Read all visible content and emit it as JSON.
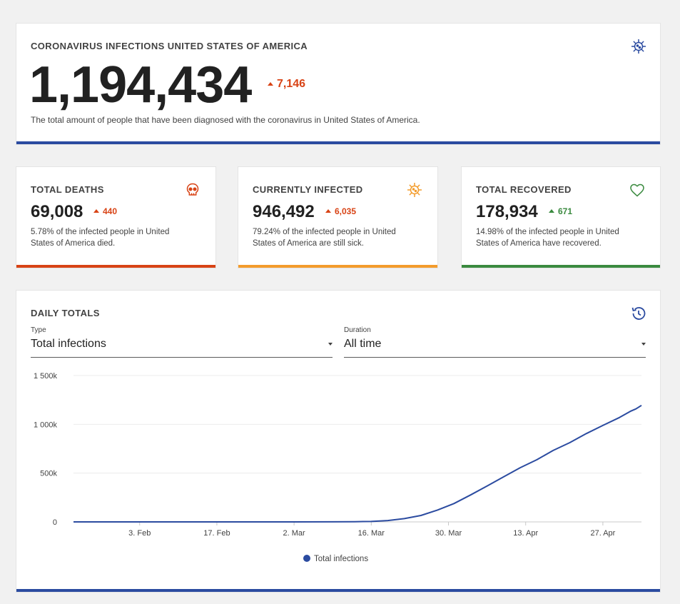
{
  "main": {
    "title": "CORONAVIRUS INFECTIONS UNITED STATES OF AMERICA",
    "total": "1,194,434",
    "delta": "7,146",
    "description": "The total amount of people that have been diagnosed with the coronavirus in United States of America.",
    "icon": "virus-icon",
    "accent": "#2b4ba0"
  },
  "stats": [
    {
      "title": "TOTAL DEATHS",
      "value": "69,008",
      "delta": "440",
      "description": "5.78% of the infected people in United States of America died.",
      "icon": "skull-icon",
      "accent": "#d84315"
    },
    {
      "title": "CURRENTLY INFECTED",
      "value": "946,492",
      "delta": "6,035",
      "description": "79.24% of the infected people in United States of America are still sick.",
      "icon": "virus-icon",
      "accent": "#f39c2c"
    },
    {
      "title": "TOTAL RECOVERED",
      "value": "178,934",
      "delta": "671",
      "description": "14.98% of the infected people in United States of America have recovered.",
      "icon": "heart-icon",
      "accent": "#3a8a3f"
    }
  ],
  "daily": {
    "title": "DAILY TOTALS",
    "icon": "history-icon",
    "type_label": "Type",
    "type_value": "Total infections",
    "duration_label": "Duration",
    "duration_value": "All time"
  },
  "chart_data": {
    "type": "line",
    "title": "DAILY TOTALS",
    "xlabel": "",
    "ylabel": "",
    "x_ticks": [
      "3. Feb",
      "17. Feb",
      "2. Mar",
      "16. Mar",
      "30. Mar",
      "13. Apr",
      "27. Apr"
    ],
    "y_ticks": [
      "0",
      "500k",
      "1 000k",
      "1 500k"
    ],
    "ylim": [
      0,
      1500000
    ],
    "xlim": [
      "2020-01-22",
      "2020-05-04"
    ],
    "grid": true,
    "legend": "bottom-center",
    "series": [
      {
        "name": "Total infections",
        "color": "#2b4ba0",
        "points": [
          [
            "2020-01-22",
            1
          ],
          [
            "2020-02-03",
            11
          ],
          [
            "2020-02-17",
            15
          ],
          [
            "2020-03-02",
            100
          ],
          [
            "2020-03-09",
            600
          ],
          [
            "2020-03-13",
            2200
          ],
          [
            "2020-03-16",
            4600
          ],
          [
            "2020-03-19",
            13700
          ],
          [
            "2020-03-22",
            33300
          ],
          [
            "2020-03-25",
            65800
          ],
          [
            "2020-03-28",
            121500
          ],
          [
            "2020-03-31",
            188200
          ],
          [
            "2020-04-03",
            275600
          ],
          [
            "2020-04-06",
            367000
          ],
          [
            "2020-04-09",
            461400
          ],
          [
            "2020-04-12",
            555300
          ],
          [
            "2020-04-15",
            636300
          ],
          [
            "2020-04-18",
            732200
          ],
          [
            "2020-04-21",
            811900
          ],
          [
            "2020-04-24",
            905300
          ],
          [
            "2020-04-27",
            988200
          ],
          [
            "2020-04-30",
            1069400
          ],
          [
            "2020-05-02",
            1133100
          ],
          [
            "2020-05-03",
            1158000
          ],
          [
            "2020-05-04",
            1194434
          ]
        ]
      }
    ]
  }
}
